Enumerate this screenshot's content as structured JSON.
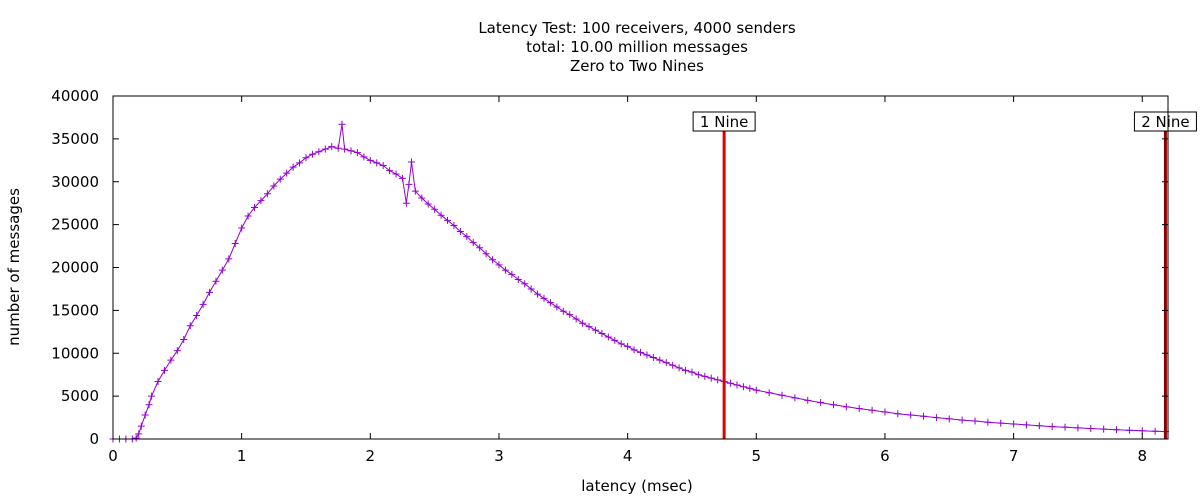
{
  "chart_data": {
    "type": "line",
    "title": "Latency Test: 100 receivers, 4000 senders",
    "subtitle": "total: 10.00 million messages",
    "subtitle2": "Zero to Two Nines",
    "xlabel": "latency (msec)",
    "ylabel": "number of messages",
    "xlim": [
      0,
      8.2
    ],
    "ylim": [
      0,
      40000
    ],
    "x_ticks": [
      "0",
      "1",
      "2",
      "3",
      "4",
      "5",
      "6",
      "7",
      "8"
    ],
    "y_ticks": [
      "0",
      "5000",
      "10000",
      "15000",
      "20000",
      "25000",
      "30000",
      "35000",
      "40000"
    ],
    "grid": false,
    "legend": "none",
    "series": [
      {
        "color": "#9400d3",
        "marker": "+",
        "points": [
          [
            0.0,
            0
          ],
          [
            0.05,
            0
          ],
          [
            0.1,
            0
          ],
          [
            0.15,
            0
          ],
          [
            0.18,
            100
          ],
          [
            0.2,
            600
          ],
          [
            0.22,
            1500
          ],
          [
            0.25,
            2800
          ],
          [
            0.28,
            4000
          ],
          [
            0.3,
            5000
          ],
          [
            0.35,
            6700
          ],
          [
            0.4,
            8000
          ],
          [
            0.45,
            9200
          ],
          [
            0.5,
            10300
          ],
          [
            0.55,
            11600
          ],
          [
            0.6,
            13200
          ],
          [
            0.65,
            14400
          ],
          [
            0.7,
            15700
          ],
          [
            0.75,
            17100
          ],
          [
            0.8,
            18400
          ],
          [
            0.85,
            19700
          ],
          [
            0.9,
            21000
          ],
          [
            0.95,
            22800
          ],
          [
            1.0,
            24600
          ],
          [
            1.05,
            26000
          ],
          [
            1.1,
            27000
          ],
          [
            1.15,
            27800
          ],
          [
            1.2,
            28600
          ],
          [
            1.25,
            29500
          ],
          [
            1.3,
            30300
          ],
          [
            1.35,
            31000
          ],
          [
            1.4,
            31700
          ],
          [
            1.45,
            32200
          ],
          [
            1.5,
            32800
          ],
          [
            1.55,
            33200
          ],
          [
            1.6,
            33500
          ],
          [
            1.65,
            33800
          ],
          [
            1.7,
            34100
          ],
          [
            1.75,
            33900
          ],
          [
            1.78,
            36700
          ],
          [
            1.8,
            33800
          ],
          [
            1.85,
            33600
          ],
          [
            1.9,
            33400
          ],
          [
            1.95,
            32900
          ],
          [
            2.0,
            32500
          ],
          [
            2.05,
            32200
          ],
          [
            2.1,
            31900
          ],
          [
            2.15,
            31300
          ],
          [
            2.2,
            30900
          ],
          [
            2.25,
            30400
          ],
          [
            2.28,
            27500
          ],
          [
            2.3,
            29700
          ],
          [
            2.32,
            32300
          ],
          [
            2.35,
            28900
          ],
          [
            2.4,
            28100
          ],
          [
            2.45,
            27400
          ],
          [
            2.5,
            26800
          ],
          [
            2.55,
            26100
          ],
          [
            2.6,
            25500
          ],
          [
            2.65,
            24900
          ],
          [
            2.7,
            24200
          ],
          [
            2.75,
            23600
          ],
          [
            2.8,
            22900
          ],
          [
            2.85,
            22300
          ],
          [
            2.9,
            21600
          ],
          [
            2.95,
            20900
          ],
          [
            3.0,
            20300
          ],
          [
            3.05,
            19700
          ],
          [
            3.1,
            19200
          ],
          [
            3.15,
            18600
          ],
          [
            3.2,
            18100
          ],
          [
            3.25,
            17500
          ],
          [
            3.3,
            16900
          ],
          [
            3.35,
            16400
          ],
          [
            3.4,
            15900
          ],
          [
            3.45,
            15400
          ],
          [
            3.5,
            14900
          ],
          [
            3.55,
            14500
          ],
          [
            3.6,
            14000
          ],
          [
            3.65,
            13500
          ],
          [
            3.7,
            13100
          ],
          [
            3.75,
            12700
          ],
          [
            3.8,
            12300
          ],
          [
            3.85,
            11900
          ],
          [
            3.9,
            11500
          ],
          [
            3.95,
            11100
          ],
          [
            4.0,
            10800
          ],
          [
            4.05,
            10400
          ],
          [
            4.1,
            10100
          ],
          [
            4.15,
            9800
          ],
          [
            4.2,
            9500
          ],
          [
            4.25,
            9200
          ],
          [
            4.3,
            8900
          ],
          [
            4.35,
            8600
          ],
          [
            4.4,
            8300
          ],
          [
            4.45,
            8000
          ],
          [
            4.5,
            7800
          ],
          [
            4.55,
            7500
          ],
          [
            4.6,
            7300
          ],
          [
            4.65,
            7100
          ],
          [
            4.7,
            6900
          ],
          [
            4.75,
            6700
          ],
          [
            4.8,
            6500
          ],
          [
            4.85,
            6300
          ],
          [
            4.9,
            6100
          ],
          [
            4.95,
            5900
          ],
          [
            5.0,
            5700
          ],
          [
            5.1,
            5400
          ],
          [
            5.2,
            5100
          ],
          [
            5.3,
            4800
          ],
          [
            5.4,
            4500
          ],
          [
            5.5,
            4250
          ],
          [
            5.6,
            4000
          ],
          [
            5.7,
            3750
          ],
          [
            5.8,
            3550
          ],
          [
            5.9,
            3350
          ],
          [
            6.0,
            3150
          ],
          [
            6.1,
            2950
          ],
          [
            6.2,
            2800
          ],
          [
            6.3,
            2650
          ],
          [
            6.4,
            2500
          ],
          [
            6.5,
            2350
          ],
          [
            6.6,
            2200
          ],
          [
            6.7,
            2100
          ],
          [
            6.8,
            1950
          ],
          [
            6.9,
            1850
          ],
          [
            7.0,
            1750
          ],
          [
            7.1,
            1650
          ],
          [
            7.2,
            1550
          ],
          [
            7.3,
            1450
          ],
          [
            7.4,
            1380
          ],
          [
            7.5,
            1300
          ],
          [
            7.6,
            1220
          ],
          [
            7.7,
            1150
          ],
          [
            7.8,
            1080
          ],
          [
            7.9,
            1020
          ],
          [
            8.0,
            960
          ],
          [
            8.1,
            900
          ],
          [
            8.18,
            860
          ]
        ]
      }
    ],
    "markers": [
      {
        "label": "1 Nine",
        "x": 4.75,
        "color": "#e00000"
      },
      {
        "label": "2 Nine",
        "x": 8.18,
        "color": "#8b0000"
      }
    ]
  }
}
